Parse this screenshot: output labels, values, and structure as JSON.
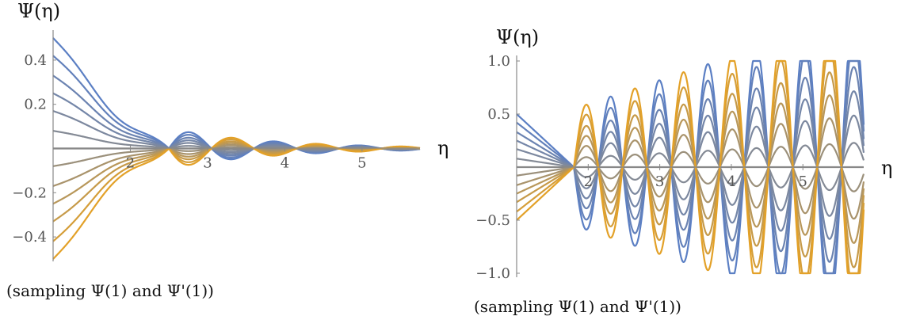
{
  "colors": {
    "blue": "#5b7fc4",
    "orange": "#e3a128",
    "axis": "#888888"
  },
  "chart_data": [
    {
      "type": "line",
      "title": "Ψ(η)",
      "xlabel": "η",
      "ylabel": "Ψ(η)",
      "caption": "(sampling Ψ(1) and Ψ'(1))",
      "x_range": [
        1,
        5.75
      ],
      "ylim": [
        -0.5,
        0.5
      ],
      "x_ticks": [
        {
          "value": 2,
          "label": "2"
        },
        {
          "value": 3,
          "label": "3"
        },
        {
          "value": 4,
          "label": "4"
        },
        {
          "value": 5,
          "label": "5"
        }
      ],
      "y_ticks": [
        {
          "value": -0.4,
          "label": "−0.4"
        },
        {
          "value": -0.2,
          "label": "−0.2"
        },
        {
          "value": 0.2,
          "label": "0.2"
        },
        {
          "value": 0.4,
          "label": "0.4"
        }
      ],
      "series_start_values": [
        0.5,
        0.42,
        0.33,
        0.25,
        0.17,
        0.08,
        0.0,
        -0.08,
        -0.17,
        -0.25,
        -0.33,
        -0.42,
        -0.5
      ],
      "decaying": true,
      "zero_crossing": 2.5,
      "period": 0.55
    },
    {
      "type": "line",
      "title": "Ψ(η)",
      "xlabel": "η",
      "ylabel": "Ψ(η)",
      "caption": "(sampling Ψ(1) and Ψ'(1))",
      "x_range": [
        1,
        5.85
      ],
      "ylim": [
        -1.0,
        1.0
      ],
      "x_ticks": [
        {
          "value": 2,
          "label": "2"
        },
        {
          "value": 3,
          "label": "3"
        },
        {
          "value": 4,
          "label": "4"
        },
        {
          "value": 5,
          "label": "5"
        }
      ],
      "y_ticks": [
        {
          "value": -1.0,
          "label": "−1.0"
        },
        {
          "value": -0.5,
          "label": "−0.5"
        },
        {
          "value": 0.5,
          "label": "0.5"
        },
        {
          "value": 1.0,
          "label": "1.0"
        }
      ],
      "series_start_values": [
        0.5,
        0.42,
        0.33,
        0.25,
        0.17,
        0.08,
        0.0,
        -0.08,
        -0.17,
        -0.25,
        -0.33,
        -0.42,
        -0.5
      ],
      "decaying": false,
      "zero_crossing": 1.8,
      "period": 0.34
    }
  ]
}
